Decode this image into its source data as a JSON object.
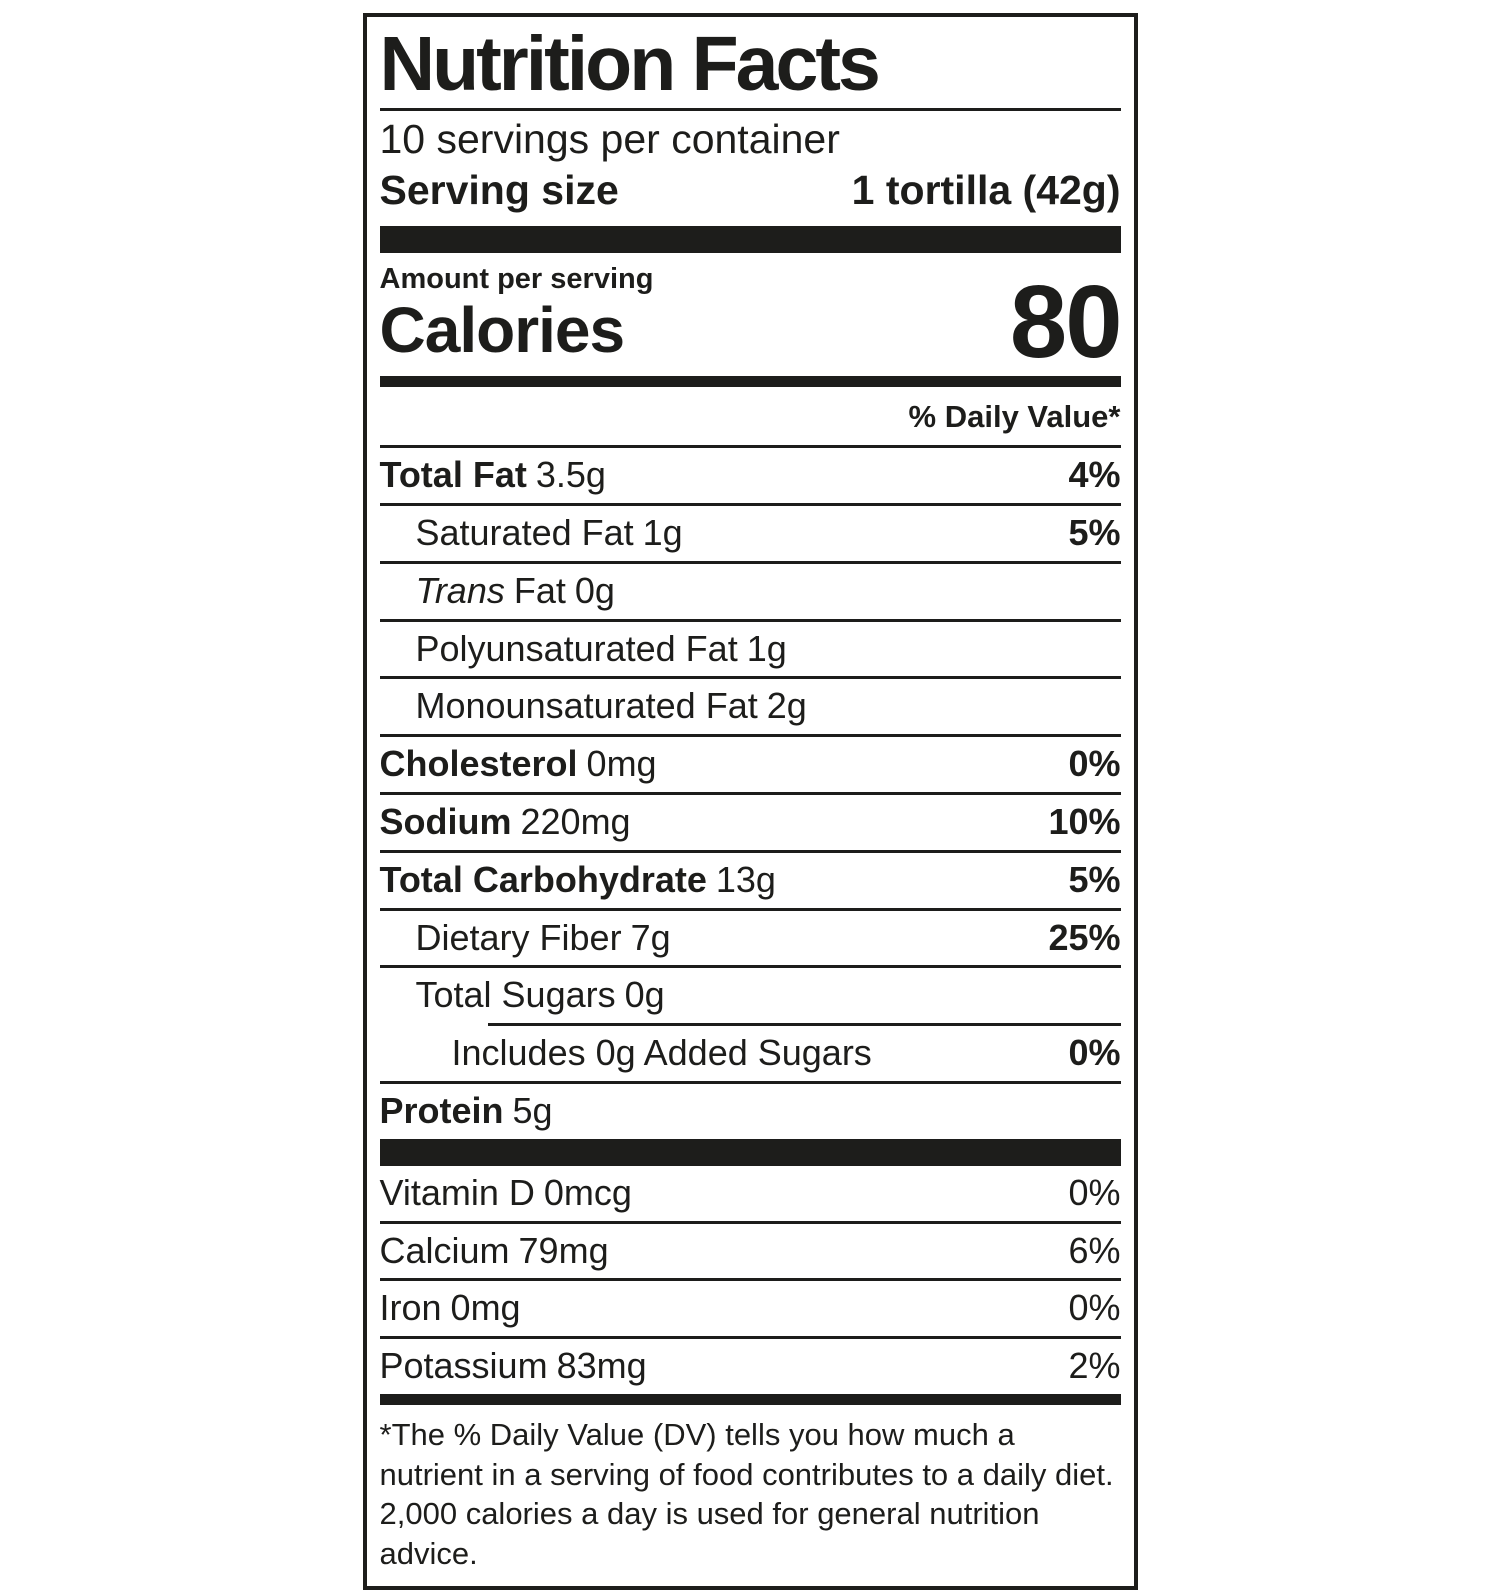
{
  "label": {
    "ink": "#1d1d1b",
    "title": "Nutrition Facts",
    "servings_per_container": "10 servings per container",
    "serving_size": {
      "label": "Serving size",
      "value": "1 tortilla (42g)"
    },
    "calories": {
      "eyebrow": "Amount per serving",
      "label": "Calories",
      "value": "80"
    },
    "dv_header": "% Daily Value*",
    "rows": [
      {
        "name": "Total Fat",
        "amount": "3.5g",
        "dv": "4%"
      },
      {
        "name": "Saturated Fat",
        "amount": "1g",
        "dv": "5%"
      },
      {
        "name_italic": "Trans",
        "name": "Fat",
        "amount": "0g",
        "dv": ""
      },
      {
        "name": "Polyunsaturated Fat",
        "amount": "1g",
        "dv": ""
      },
      {
        "name": "Monounsaturated Fat",
        "amount": "2g",
        "dv": ""
      },
      {
        "name": "Cholesterol",
        "amount": "0mg",
        "dv": "0%"
      },
      {
        "name": "Sodium",
        "amount": "220mg",
        "dv": "10%"
      },
      {
        "name": "Total Carbohydrate",
        "amount": "13g",
        "dv": "5%"
      },
      {
        "name": "Dietary Fiber",
        "amount": "7g",
        "dv": "25%"
      },
      {
        "name": "Total Sugars",
        "amount": "0g",
        "dv": ""
      },
      {
        "name": "Includes 0g Added Sugars",
        "amount": "",
        "dv": "0%"
      },
      {
        "name": "Protein",
        "amount": "5g",
        "dv": ""
      }
    ],
    "micros": [
      {
        "name": "Vitamin D",
        "amount": "0mcg",
        "dv": "0%"
      },
      {
        "name": "Calcium",
        "amount": "79mg",
        "dv": "6%"
      },
      {
        "name": "Iron",
        "amount": "0mg",
        "dv": "0%"
      },
      {
        "name": "Potassium",
        "amount": "83mg",
        "dv": "2%"
      }
    ],
    "footnote": "*The % Daily Value (DV) tells you how much a nutrient in a serving of food contributes to a daily diet. 2,000 calories a day is used for general nutrition advice."
  }
}
